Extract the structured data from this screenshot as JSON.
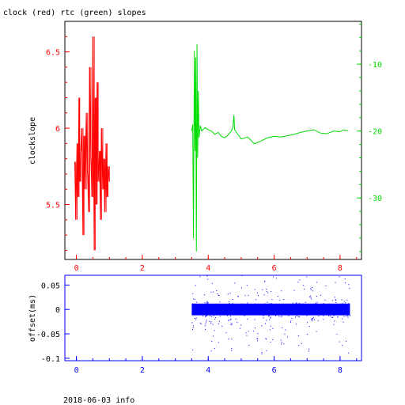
{
  "header": {
    "title": "clock (red) rtc (green) slopes",
    "footer": "2018-06-03 info"
  },
  "colors": {
    "clock": "#ff0000",
    "rtc": "#00dd00",
    "offset": "#0000ff",
    "axes": "#000000"
  },
  "chart_data": [
    {
      "type": "line",
      "title": "clock (red) rtc (green) slopes",
      "xlabel": "",
      "ylabel": "clockslope",
      "xlim": [
        -0.35,
        8.65
      ],
      "ylim": [
        5.14,
        6.7
      ],
      "y2lim": [
        -39.2,
        -3.6
      ],
      "x_ticks": [
        "0",
        "2",
        "4",
        "6",
        "8"
      ],
      "y_ticks": [
        "5.5",
        "6",
        "6.5"
      ],
      "y2_ticks": [
        "-10",
        "-20",
        "-30"
      ],
      "grid": false,
      "series": [
        {
          "axis": "left",
          "x": [
            -0.05,
            -0.02,
            0.02,
            0.05,
            0.08,
            0.1,
            0.13,
            0.16,
            0.2,
            0.23,
            0.26,
            0.3,
            0.34,
            0.37,
            0.4,
            0.44,
            0.47,
            0.5,
            0.54,
            0.57,
            0.6,
            0.63,
            0.66,
            0.7,
            0.73,
            0.76,
            0.8,
            0.83,
            0.86,
            0.9,
            0.93,
            0.96,
            1.0
          ],
          "y": [
            5.78,
            5.4,
            5.9,
            5.55,
            6.2,
            5.65,
            5.85,
            6.0,
            5.3,
            5.95,
            5.6,
            6.1,
            5.7,
            5.45,
            6.4,
            5.8,
            5.55,
            6.6,
            5.2,
            6.2,
            5.5,
            6.3,
            5.65,
            5.85,
            5.4,
            6.0,
            5.6,
            5.8,
            5.45,
            5.9,
            5.55,
            5.75,
            5.65
          ]
        },
        {
          "axis": "right",
          "x": [
            3.5,
            3.53,
            3.55,
            3.58,
            3.6,
            3.62,
            3.64,
            3.66,
            3.68,
            3.7,
            3.72,
            3.76,
            3.8,
            3.9,
            4.0,
            4.1,
            4.2,
            4.3,
            4.4,
            4.5,
            4.6,
            4.7,
            4.75,
            4.78,
            4.8,
            4.9,
            5.0,
            5.2,
            5.4,
            5.6,
            5.8,
            6.0,
            6.2,
            6.4,
            6.6,
            6.8,
            7.0,
            7.2,
            7.4,
            7.6,
            7.8,
            8.0,
            8.1,
            8.2,
            8.25
          ],
          "y": [
            -20.0,
            -19.0,
            -36.0,
            -8.0,
            -23.0,
            -9.0,
            -38.0,
            -7.0,
            -24.0,
            -14.0,
            -21.0,
            -19.2,
            -20.0,
            -19.5,
            -19.8,
            -20.0,
            -20.5,
            -20.2,
            -20.8,
            -21.0,
            -20.6,
            -20.0,
            -19.5,
            -17.6,
            -19.8,
            -20.5,
            -21.2,
            -20.9,
            -21.9,
            -21.5,
            -21.0,
            -20.8,
            -20.9,
            -20.7,
            -20.5,
            -20.2,
            -20.0,
            -19.8,
            -20.3,
            -20.4,
            -20.0,
            -20.1,
            -19.8,
            -19.9,
            -20.0
          ]
        }
      ]
    },
    {
      "type": "scatter",
      "title": "",
      "xlabel": "",
      "ylabel": "offset(ms)",
      "xlim": [
        -0.35,
        8.65
      ],
      "ylim": [
        -0.105,
        0.07
      ],
      "x_ticks": [
        "0",
        "2",
        "4",
        "6",
        "8"
      ],
      "y_ticks": [
        "0.05",
        "0",
        "-0.05",
        "-0.1"
      ],
      "grid": false,
      "series": [
        {
          "x_range": [
            3.5,
            8.3
          ],
          "band_center": 0.0,
          "band_halfwidth": 0.012,
          "outlier_range": [
            -0.08,
            0.06
          ],
          "x": [
            3.6,
            3.9,
            4.3,
            4.7,
            5.0,
            5.4,
            5.8,
            6.2,
            6.6,
            7.0,
            7.4,
            7.8,
            8.2
          ],
          "y": [
            0.05,
            -0.04,
            0.03,
            -0.06,
            0.045,
            -0.02,
            0.035,
            -0.07,
            0.04,
            -0.05,
            0.03,
            -0.03,
            0.02
          ]
        }
      ]
    }
  ]
}
